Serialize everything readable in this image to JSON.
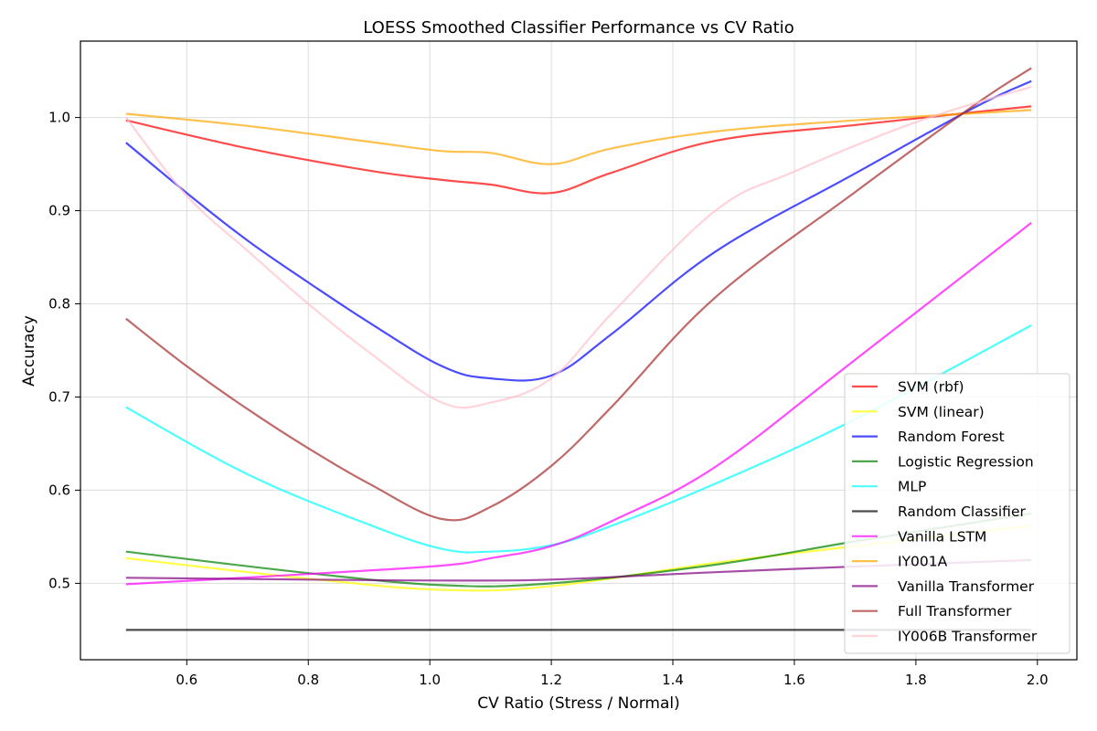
{
  "chart_data": {
    "type": "line",
    "title": "LOESS Smoothed Classifier Performance vs CV Ratio",
    "xlabel": "CV Ratio (Stress / Normal)",
    "ylabel": "Accuracy",
    "xlim": [
      0.425,
      2.065
    ],
    "ylim": [
      0.418,
      1.082
    ],
    "xticks": [
      0.6,
      0.8,
      1.0,
      1.2,
      1.4,
      1.6,
      1.8,
      2.0
    ],
    "xtick_labels": [
      "0.6",
      "0.8",
      "1.0",
      "1.2",
      "1.4",
      "1.6",
      "1.8",
      "2.0"
    ],
    "yticks": [
      0.5,
      0.6,
      0.7,
      0.8,
      0.9,
      1.0
    ],
    "ytick_labels": [
      "0.5",
      "0.6",
      "0.7",
      "0.8",
      "0.9",
      "1.0"
    ],
    "grid": true,
    "legend_position": "lower right",
    "series": [
      {
        "name": "SVM (rbf)",
        "color": "#ff0000",
        "x": [
          0.5,
          0.7,
          0.9,
          1.02,
          1.1,
          1.2,
          1.3,
          1.47,
          1.7,
          1.9,
          1.99
        ],
        "y": [
          0.997,
          0.967,
          0.943,
          0.933,
          0.928,
          0.919,
          0.941,
          0.975,
          0.992,
          1.006,
          1.012
        ]
      },
      {
        "name": "SVM (linear)",
        "color": "#ffff00",
        "x": [
          0.5,
          0.8,
          1.02,
          1.2,
          1.47,
          1.7,
          1.99
        ],
        "y": [
          0.527,
          0.505,
          0.493,
          0.497,
          0.522,
          0.54,
          0.562
        ]
      },
      {
        "name": "Random Forest",
        "color": "#0000ff",
        "x": [
          0.5,
          0.6,
          0.7,
          0.8,
          0.9,
          1.02,
          1.1,
          1.2,
          1.3,
          1.47,
          1.7,
          1.9,
          1.99
        ],
        "y": [
          0.973,
          0.919,
          0.868,
          0.823,
          0.78,
          0.733,
          0.72,
          0.723,
          0.768,
          0.856,
          0.94,
          1.012,
          1.039
        ]
      },
      {
        "name": "Logistic Regression",
        "color": "#008000",
        "x": [
          0.5,
          0.8,
          1.02,
          1.2,
          1.47,
          1.7,
          1.99
        ],
        "y": [
          0.534,
          0.511,
          0.498,
          0.5,
          0.52,
          0.545,
          0.575
        ]
      },
      {
        "name": "MLP",
        "color": "#00ffff",
        "x": [
          0.5,
          0.7,
          0.9,
          1.02,
          1.1,
          1.2,
          1.3,
          1.47,
          1.7,
          1.99
        ],
        "y": [
          0.689,
          0.617,
          0.563,
          0.537,
          0.534,
          0.541,
          0.562,
          0.607,
          0.676,
          0.777
        ]
      },
      {
        "name": "Random Classifier",
        "color": "#000000",
        "x": [
          0.5,
          1.99
        ],
        "y": [
          0.45,
          0.45
        ]
      },
      {
        "name": "Vanilla LSTM",
        "color": "#ff00ff",
        "x": [
          0.5,
          0.8,
          1.02,
          1.1,
          1.2,
          1.3,
          1.47,
          1.7,
          1.99
        ],
        "y": [
          0.499,
          0.51,
          0.519,
          0.527,
          0.54,
          0.567,
          0.625,
          0.74,
          0.887
        ]
      },
      {
        "name": "IY001A",
        "color": "#ffa500",
        "x": [
          0.5,
          0.7,
          0.9,
          1.02,
          1.1,
          1.2,
          1.3,
          1.47,
          1.7,
          1.99
        ],
        "y": [
          1.004,
          0.991,
          0.974,
          0.964,
          0.962,
          0.95,
          0.967,
          0.985,
          0.997,
          1.008
        ]
      },
      {
        "name": "Vanilla Transformer",
        "color": "#800080",
        "x": [
          0.5,
          0.8,
          1.02,
          1.2,
          1.47,
          1.7,
          1.99
        ],
        "y": [
          0.506,
          0.504,
          0.503,
          0.504,
          0.512,
          0.518,
          0.525
        ]
      },
      {
        "name": "Full Transformer",
        "color": "#a52a2a",
        "x": [
          0.5,
          0.6,
          0.7,
          0.8,
          0.9,
          1.02,
          1.1,
          1.2,
          1.3,
          1.47,
          1.7,
          1.9,
          1.99
        ],
        "y": [
          0.784,
          0.733,
          0.687,
          0.645,
          0.607,
          0.569,
          0.582,
          0.626,
          0.69,
          0.807,
          0.92,
          1.015,
          1.053
        ]
      },
      {
        "name": "IY006B Transformer",
        "color": "#ffc0cb",
        "x": [
          0.5,
          0.6,
          0.7,
          0.8,
          0.9,
          1.02,
          1.1,
          1.2,
          1.3,
          1.47,
          1.6,
          1.8,
          1.99
        ],
        "y": [
          1.0,
          0.916,
          0.857,
          0.8,
          0.748,
          0.694,
          0.694,
          0.72,
          0.79,
          0.9,
          0.942,
          0.995,
          1.033
        ]
      }
    ]
  }
}
